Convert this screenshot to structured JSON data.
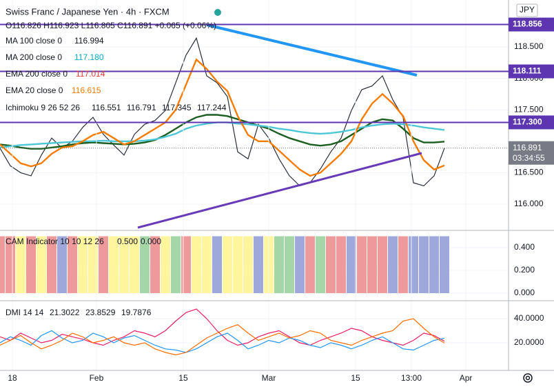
{
  "chart_data": [
    {
      "type": "line",
      "title": "Swiss Franc / Japanese Yen · 4h · FXCM",
      "ohlc": "O116.826 H116.923 L116.805 C116.891 +0.065 (+0.06%)",
      "currency": "JPY",
      "x": [
        0,
        1,
        2,
        3,
        4,
        5,
        6,
        7,
        8,
        9,
        10,
        11,
        12,
        13,
        14,
        15,
        16,
        17,
        18,
        19,
        20,
        21,
        22,
        23,
        24,
        25,
        26,
        27,
        28,
        29,
        30,
        31,
        32,
        33,
        34,
        35,
        36,
        37,
        38,
        39,
        40,
        41,
        42,
        43
      ],
      "xlim": [
        0,
        49.2
      ],
      "ylim": [
        115.605,
        119.246
      ],
      "yticks": [
        {
          "value": 116,
          "label": "116.000"
        },
        {
          "value": 116.5,
          "label": "116.500"
        },
        {
          "value": 117.5,
          "label": "117.500"
        },
        {
          "value": 118,
          "label": "118.000"
        },
        {
          "value": 118.5,
          "label": "118.500"
        }
      ],
      "series": [
        {
          "color": "#2a2e39",
          "values": [
            116.89,
            116.61,
            116.5,
            116.45,
            116.78,
            117.05,
            116.89,
            117.0,
            117.22,
            117.38,
            117.11,
            116.94,
            116.78,
            117.11,
            117.27,
            117.33,
            117.49,
            117.93,
            118.37,
            118.64,
            118.04,
            117.93,
            117.71,
            116.83,
            116.72,
            117.27,
            117.05,
            116.72,
            116.45,
            116.29,
            116.34,
            116.56,
            116.83,
            117.05,
            117.49,
            117.82,
            117.88,
            118.04,
            117.66,
            117.38,
            116.34,
            116.29,
            116.45,
            116.89
          ]
        },
        {
          "name": "MA 100 close 0",
          "legend_value": "116.994",
          "color": "#1b5e20",
          "values": [
            116.95,
            116.93,
            116.9,
            116.88,
            116.88,
            116.9,
            116.92,
            116.95,
            116.97,
            116.98,
            116.97,
            116.96,
            116.95,
            116.96,
            116.98,
            117.02,
            117.1,
            117.2,
            117.3,
            117.38,
            117.42,
            117.42,
            117.4,
            117.35,
            117.3,
            117.25,
            117.2,
            117.12,
            117.05,
            117.0,
            116.95,
            116.93,
            116.95,
            117.0,
            117.1,
            117.2,
            117.3,
            117.35,
            117.33,
            117.2,
            117.05,
            116.98,
            116.98,
            116.994
          ]
        },
        {
          "name": "MA 200 close 0",
          "legend_value": "117.180",
          "color": "#4dc6d6",
          "values": [
            116.9,
            116.92,
            116.94,
            116.95,
            116.96,
            116.97,
            116.98,
            116.99,
            117.0,
            117.0,
            117.01,
            117.0,
            117.0,
            117.0,
            117.01,
            117.03,
            117.07,
            117.12,
            117.2,
            117.25,
            117.28,
            117.3,
            117.3,
            117.28,
            117.27,
            117.25,
            117.23,
            117.2,
            117.18,
            117.15,
            117.13,
            117.12,
            117.13,
            117.15,
            117.18,
            117.22,
            117.25,
            117.27,
            117.28,
            117.27,
            117.25,
            117.22,
            117.2,
            117.18
          ]
        },
        {
          "name": "EMA 20 close 0",
          "legend_value": "116.615",
          "color": "#f57c00",
          "values": [
            116.95,
            116.8,
            116.65,
            116.6,
            116.65,
            116.8,
            116.9,
            116.92,
            117.0,
            117.1,
            117.15,
            117.05,
            116.95,
            117.0,
            117.1,
            117.2,
            117.3,
            117.5,
            117.9,
            118.3,
            118.15,
            117.95,
            117.8,
            117.4,
            117.1,
            117.0,
            117.0,
            116.85,
            116.7,
            116.55,
            116.45,
            116.5,
            116.65,
            116.8,
            117.0,
            117.35,
            117.6,
            117.75,
            117.6,
            117.4,
            117.0,
            116.7,
            116.55,
            116.615
          ]
        }
      ],
      "indicators": [
        {
          "name": "EMA 200 close 0",
          "legend_value": "117.014",
          "color": "#e53935"
        },
        {
          "name": "Ichimoku 9 26 52 26",
          "legend_values": [
            {
              "text": "116.551",
              "color": "#2196f3"
            },
            {
              "text": "116.791",
              "color": "#880e4f"
            },
            {
              "text": "117.345",
              "color": "#43a047"
            },
            {
              "text": "117.244",
              "color": "#f44336"
            }
          ]
        }
      ],
      "levels": [
        118.856,
        118.111,
        {
          "value": 117.3,
          "label": "117.300"
        }
      ],
      "level_color": "#5e35b1",
      "last_price": 116.891,
      "countdown": "03:34:55"
    },
    {
      "type": "bar",
      "label": "CAM Indicator 10 10 12 26",
      "legend_values": [
        {
          "text": "0.500",
          "color": "#3f51b5"
        },
        {
          "text": "0.000",
          "color": "#3f51b5"
        }
      ],
      "x": [
        0,
        1,
        2,
        3,
        4,
        5,
        6,
        7,
        8,
        9,
        10,
        11,
        12,
        13,
        14,
        15,
        16,
        17,
        18,
        19,
        20,
        21,
        22,
        23,
        24,
        25,
        26,
        27,
        28,
        29,
        30,
        31,
        32,
        33,
        34,
        35,
        36,
        37,
        38,
        39,
        40,
        41,
        42,
        43
      ],
      "xlim": [
        0,
        49.2
      ],
      "ylim": [
        -0.0424,
        0.5333
      ],
      "yticks": [
        {
          "value": 0.4,
          "label": "0.400"
        },
        {
          "value": 0.2,
          "label": "0.200"
        },
        {
          "value": 0,
          "label": "0.000"
        }
      ],
      "values": [
        0.5,
        0.5,
        0.5,
        0.5,
        0.5,
        0.5,
        0.5,
        0.5,
        0.5,
        0.5,
        0.5,
        0.5,
        0.5,
        0.5,
        0.5,
        0.5,
        0.5,
        0.5,
        0.5,
        0.5,
        0.5,
        0.5,
        0.5,
        0.5,
        0.5,
        0.5,
        0.5,
        0.5,
        0.5,
        0.5,
        0.5,
        0.5,
        0.5,
        0.5,
        0.5,
        0.5,
        0.5,
        0.5,
        0.5,
        0.5,
        0.5,
        0.5,
        0.5,
        0.5
      ],
      "colors": [
        "#ef9a9a",
        "#ef9a9a",
        "#fff59d",
        "#ef9a9a",
        "#fff59d",
        "#ef9a9a",
        "#9fa8da",
        "#ef9a9a",
        "#fff59d",
        "#fff59d",
        "#ef9a9a",
        "#fff59d",
        "#fff59d",
        "#fff59d",
        "#a5d6a7",
        "#ef9a9a",
        "#fff59d",
        "#a5d6a7",
        "#ef9a9a",
        "#fff59d",
        "#fff59d",
        "#9fa8da",
        "#fff59d",
        "#fff59d",
        "#fff59d",
        "#9fa8da",
        "#fff59d",
        "#a5d6a7",
        "#a5d6a7",
        "#9fa8da",
        "#ef9a9a",
        "#a5d6a7",
        "#ef9a9a",
        "#ef9a9a",
        "#9fa8da",
        "#ef9a9a",
        "#ef9a9a",
        "#ef9a9a",
        "#9fa8da",
        "#ef9a9a",
        "#9fa8da",
        "#9fa8da",
        "#9fa8da",
        "#9fa8da"
      ]
    },
    {
      "type": "line",
      "label": "DMI 14 14",
      "x": [
        0,
        1,
        2,
        3,
        4,
        5,
        6,
        7,
        8,
        9,
        10,
        11,
        12,
        13,
        14,
        15,
        16,
        17,
        18,
        19,
        20,
        21,
        22,
        23,
        24,
        25,
        26,
        27,
        28,
        29,
        30,
        31,
        32,
        33,
        34,
        35,
        36,
        37,
        38,
        39,
        40,
        41,
        42,
        43
      ],
      "xlim": [
        0,
        49.2
      ],
      "ylim": [
        -1.71,
        53.71
      ],
      "yticks": [
        {
          "value": 40,
          "label": "40.0000"
        },
        {
          "value": 20,
          "label": "20.0000"
        }
      ],
      "xticks": [
        {
          "value": 1.2,
          "label": "18"
        },
        {
          "value": 9.33,
          "label": "Feb"
        },
        {
          "value": 17.73,
          "label": "15"
        },
        {
          "value": 26,
          "label": "Mar"
        },
        {
          "value": 34.4,
          "label": "15"
        },
        {
          "value": 39.8,
          "label": "13:00"
        },
        {
          "value": 45.07,
          "label": "Apr"
        }
      ],
      "series": [
        {
          "legend_value": "21.3022",
          "color": "#e91e63",
          "values": [
            25,
            22,
            28,
            24,
            20,
            22,
            27,
            25,
            23,
            20,
            18,
            22,
            25,
            30,
            28,
            25,
            30,
            38,
            45,
            48,
            40,
            30,
            22,
            18,
            20,
            25,
            28,
            30,
            25,
            20,
            18,
            22,
            25,
            28,
            32,
            30,
            25,
            22,
            20,
            18,
            22,
            28,
            26,
            21.3022
          ]
        },
        {
          "legend_value": "23.8529",
          "color": "#2196f3",
          "values": [
            20,
            25,
            22,
            18,
            26,
            30,
            24,
            20,
            22,
            28,
            25,
            20,
            24,
            26,
            22,
            18,
            15,
            14,
            12,
            15,
            20,
            25,
            28,
            22,
            15,
            18,
            22,
            20,
            24,
            22,
            18,
            16,
            20,
            18,
            15,
            18,
            22,
            25,
            20,
            15,
            14,
            18,
            22,
            23.8529
          ]
        },
        {
          "legend_value": "19.7876",
          "color": "#ff6d00",
          "values": [
            18,
            22,
            26,
            20,
            15,
            18,
            22,
            28,
            25,
            20,
            22,
            25,
            20,
            18,
            20,
            15,
            12,
            10,
            12,
            18,
            24,
            28,
            32,
            35,
            28,
            22,
            25,
            28,
            24,
            26,
            30,
            28,
            22,
            20,
            18,
            22,
            25,
            28,
            30,
            38,
            40,
            32,
            25,
            19.7876
          ]
        }
      ]
    }
  ]
}
